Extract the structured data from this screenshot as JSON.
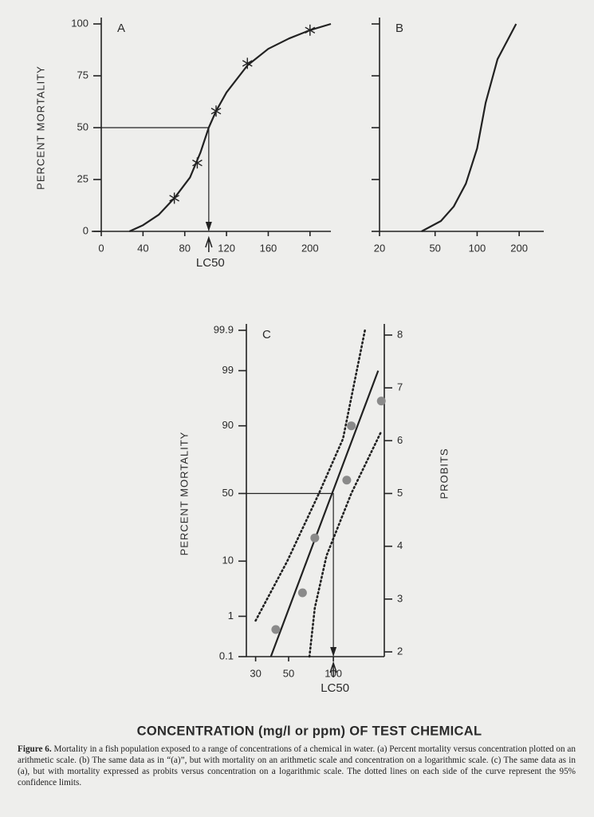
{
  "chart_data": [
    {
      "type": "line",
      "label": "A",
      "ylabel": "PERCENT MORTALITY",
      "xlim": [
        0,
        220
      ],
      "xticks": [
        0,
        40,
        80,
        120,
        160,
        200
      ],
      "ylim": [
        0,
        100
      ],
      "yticks": [
        0,
        25,
        50,
        75,
        100
      ],
      "series": [
        {
          "x": [
            27,
            40,
            55,
            70,
            85,
            95,
            103,
            110,
            120,
            140,
            160,
            180,
            200,
            220
          ],
          "values": [
            0,
            3,
            8,
            16,
            26,
            38,
            50,
            58,
            67,
            80,
            88,
            93,
            97,
            100
          ],
          "color": "#222222"
        },
        {
          "x": [
            70,
            92,
            110,
            140,
            200
          ],
          "values": [
            16,
            33,
            58,
            81,
            97
          ],
          "color": "#222222",
          "marker": "star",
          "line": false
        }
      ],
      "lc50": {
        "label": "LC50",
        "x": 103,
        "y": 50
      }
    },
    {
      "type": "line",
      "label": "B",
      "xscale": "log",
      "xlim": [
        20,
        300
      ],
      "xticks": [
        20,
        50,
        100,
        200
      ],
      "ylim": [
        0,
        100
      ],
      "yticks": [
        0,
        25,
        50,
        75,
        100
      ],
      "ytick_labels": false,
      "series": [
        {
          "x": [
            40,
            55,
            68,
            83,
            100,
            115,
            140,
            190
          ],
          "values": [
            0,
            5,
            12,
            23,
            40,
            62,
            83,
            100
          ],
          "color": "#222222"
        }
      ]
    },
    {
      "type": "line",
      "label": "C",
      "xscale": "log",
      "yscale": "probit",
      "ylabel": "PERCENT MORTALITY",
      "y2label": "PROBITS",
      "xlim": [
        26,
        220
      ],
      "xticks": [
        30,
        50,
        100
      ],
      "ylim": [
        0.1,
        99.9
      ],
      "yticks": [
        0.1,
        1,
        10,
        50,
        90,
        99,
        99.9
      ],
      "y2lim": [
        1.91,
        8.09
      ],
      "y2ticks": [
        2,
        3,
        4,
        5,
        6,
        7,
        8
      ],
      "series": [
        {
          "x": [
            38,
            200
          ],
          "values": [
            0.1,
            99
          ],
          "color": "#222222"
        },
        {
          "x": [
            30,
            49,
            80,
            116,
            163
          ],
          "values": [
            0.8,
            10,
            50,
            85,
            99.9
          ],
          "color": "#222222",
          "dash": "dotted"
        },
        {
          "x": [
            69,
            75,
            90,
            132,
            210
          ],
          "values": [
            0.1,
            1.5,
            12,
            50,
            88
          ],
          "color": "#222222",
          "dash": "dotted"
        },
        {
          "x": [
            41,
            62,
            75,
            123,
            132,
            210
          ],
          "values": [
            0.5,
            3,
            20,
            60,
            90,
            96
          ],
          "color": "#8a8a8a",
          "marker": "dot",
          "line": false
        }
      ],
      "lc50": {
        "label": "LC50",
        "x": 100,
        "y": 50
      }
    }
  ],
  "xlabel": "CONCENTRATION (mg/l or ppm) OF TEST CHEMICAL",
  "caption": {
    "label": "Figure 6.",
    "text": "Mortality in a fish population exposed to a range of concentrations of a chemical in water. (a) Percent mortality versus concentration plotted on an arithmetic scale. (b) The same data as in “(a)”, but with mortality on an arithmetic scale and concentration on a logarithmic scale. (c) The same data as in (a), but with mortality expressed as probits versus concentration on a logarithmic scale. The dotted lines on each side of the curve represent the 95% confidence limits."
  }
}
